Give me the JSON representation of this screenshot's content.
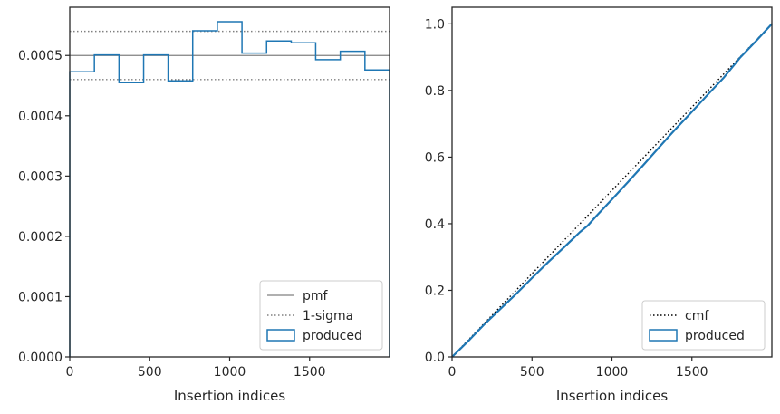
{
  "chart_data": [
    {
      "type": "line",
      "xlabel": "Insertion indices",
      "ylabel": "",
      "xlim": [
        0,
        2000
      ],
      "ylim": [
        0,
        0.00058
      ],
      "xticks": [
        0,
        500,
        1000,
        1500
      ],
      "xtick_labels": [
        "0",
        "500",
        "1000",
        "1500"
      ],
      "yticks": [
        0,
        0.0001,
        0.0002,
        0.0003,
        0.0004,
        0.0005
      ],
      "ytick_labels": [
        "0.0000",
        "0.0001",
        "0.0002",
        "0.0003",
        "0.0004",
        "0.0005"
      ],
      "grid": false,
      "legend_position": "lower-right",
      "colors": {
        "pmf": "#808080",
        "sigma": "#808080",
        "produced": "#1f77b4"
      },
      "pmf": 0.0005,
      "sigma_band": [
        0.00046,
        0.00054
      ],
      "produced": {
        "bin_edges": [
          0,
          154,
          308,
          462,
          615,
          769,
          923,
          1077,
          1231,
          1385,
          1538,
          1692,
          1846,
          2000
        ],
        "values": [
          0.000473,
          0.000501,
          0.000455,
          0.000501,
          0.000458,
          0.000541,
          0.000556,
          0.000504,
          0.000524,
          0.000521,
          0.000493,
          0.000507,
          0.000476
        ]
      },
      "legend": [
        {
          "key": "pmf",
          "label": "pmf"
        },
        {
          "key": "sigma",
          "label": "1-sigma"
        },
        {
          "key": "produced",
          "label": "produced"
        }
      ]
    },
    {
      "type": "line",
      "xlabel": "Insertion indices",
      "ylabel": "",
      "xlim": [
        0,
        2000
      ],
      "ylim": [
        0,
        1.05
      ],
      "xticks": [
        0,
        500,
        1000,
        1500
      ],
      "xtick_labels": [
        "0",
        "500",
        "1000",
        "1500"
      ],
      "yticks": [
        0,
        0.2,
        0.4,
        0.6,
        0.8,
        1.0
      ],
      "ytick_labels": [
        "0.0",
        "0.2",
        "0.4",
        "0.6",
        "0.8",
        "1.0"
      ],
      "grid": false,
      "legend_position": "lower-right",
      "colors": {
        "cmf": "#000000",
        "produced": "#1f77b4"
      },
      "cmf": {
        "x": [
          0,
          2000
        ],
        "y": [
          0,
          1
        ]
      },
      "produced": {
        "x": [
          0,
          100,
          200,
          300,
          400,
          500,
          600,
          700,
          800,
          850,
          900,
          1000,
          1100,
          1200,
          1300,
          1350,
          1400,
          1500,
          1600,
          1700,
          1800,
          1900,
          2000
        ],
        "y": [
          0,
          0.047,
          0.097,
          0.143,
          0.189,
          0.237,
          0.284,
          0.329,
          0.375,
          0.395,
          0.422,
          0.473,
          0.525,
          0.578,
          0.632,
          0.659,
          0.685,
          0.736,
          0.788,
          0.839,
          0.898,
          0.948,
          1.0
        ]
      },
      "legend": [
        {
          "key": "cmf",
          "label": "cmf"
        },
        {
          "key": "produced",
          "label": "produced"
        }
      ]
    }
  ]
}
